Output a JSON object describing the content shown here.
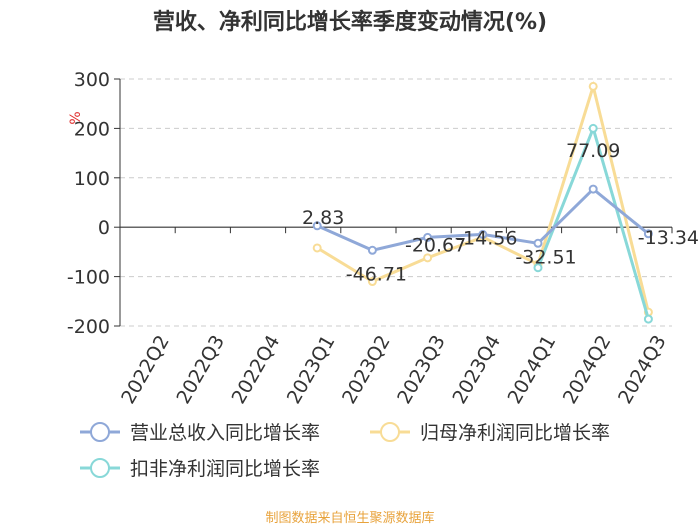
{
  "title": "营收、净利同比增长率季度变动情况(%)",
  "source": "制图数据来自恒生聚源数据库",
  "chart_data": {
    "type": "line",
    "title": "营收、净利同比增长率季度变动情况(%)",
    "ylabel": "%",
    "ylim": [
      -200,
      300
    ],
    "yticks": [
      300,
      200,
      100,
      0,
      -100,
      -200
    ],
    "ytick_labels": [
      "300",
      "200",
      "100",
      "0",
      "-100",
      "-200"
    ],
    "grid": true,
    "legend_position": "bottom",
    "categories": [
      "2022Q2",
      "2022Q3",
      "2022Q4",
      "2023Q1",
      "2023Q2",
      "2023Q3",
      "2023Q4",
      "2024Q1",
      "2024Q2",
      "2024Q3"
    ],
    "series": [
      {
        "name": "营业总收入同比增长率",
        "color": "#8fa8d8",
        "values": [
          null,
          null,
          null,
          2.83,
          -46.71,
          -20.67,
          -14.56,
          -32.51,
          77.09,
          -13.34
        ],
        "labels": [
          "",
          "",
          "",
          "2.83",
          "-46.71",
          "-20.67",
          "-14.56",
          "-32.51",
          "77.09",
          "-13.34"
        ]
      },
      {
        "name": "归母净利润同比增长率",
        "color": "#f8dc96",
        "values": [
          null,
          null,
          null,
          -42,
          -110,
          -62,
          -20,
          -75,
          285,
          -172
        ]
      },
      {
        "name": "扣非净利润同比增长率",
        "color": "#88d8d8",
        "values": [
          null,
          null,
          null,
          null,
          null,
          null,
          null,
          -82,
          200,
          -186
        ]
      }
    ]
  }
}
